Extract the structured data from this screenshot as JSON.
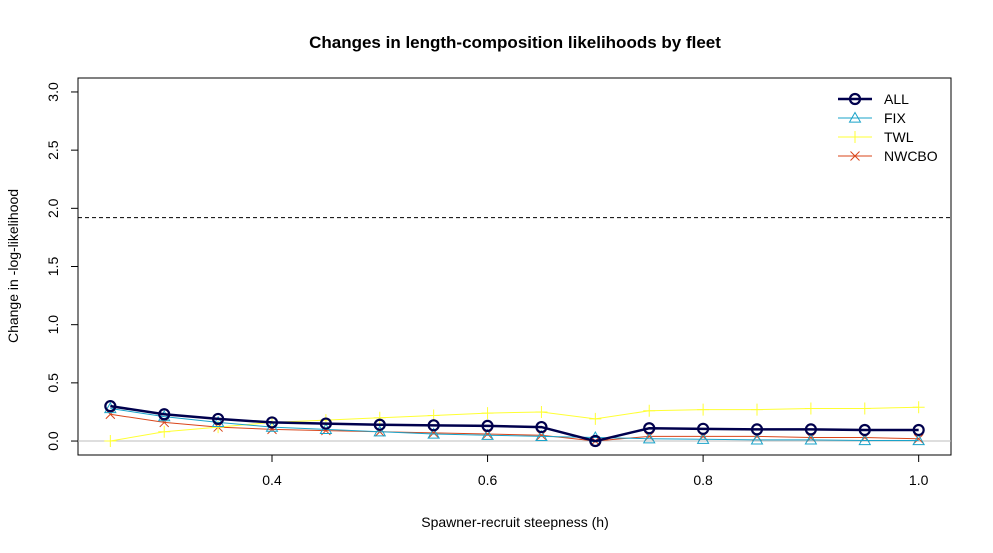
{
  "chart_data": {
    "type": "line",
    "title": "Changes in length-composition likelihoods by fleet",
    "xlabel": "Spawner-recruit steepness (h)",
    "ylabel": "Change in -log-likelihood",
    "xlim": [
      0.22,
      1.03
    ],
    "ylim": [
      -0.12,
      3.12
    ],
    "xticks": [
      0.4,
      0.6,
      0.8,
      1.0
    ],
    "xtick_labels": [
      "0.4",
      "0.6",
      "0.8",
      "1.0"
    ],
    "yticks": [
      0.0,
      0.5,
      1.0,
      1.5,
      2.0,
      2.5,
      3.0
    ],
    "ytick_labels": [
      "0.0",
      "0.5",
      "1.0",
      "1.5",
      "2.0",
      "2.5",
      "3.0"
    ],
    "reference_line": {
      "y": 1.92,
      "style": "dashed"
    },
    "zero_line": {
      "y": 0.0,
      "color": "#bdbdbd"
    },
    "legend_position": "top-right",
    "x": [
      0.25,
      0.3,
      0.35,
      0.4,
      0.45,
      0.5,
      0.55,
      0.6,
      0.65,
      0.7,
      0.75,
      0.8,
      0.85,
      0.9,
      0.95,
      1.0
    ],
    "series": [
      {
        "name": "ALL",
        "color": "#00004d",
        "marker": "circle",
        "line_width": 2.5,
        "values": [
          0.3,
          0.23,
          0.19,
          0.16,
          0.15,
          0.14,
          0.135,
          0.13,
          0.12,
          0.0,
          0.11,
          0.105,
          0.1,
          0.1,
          0.095,
          0.095
        ]
      },
      {
        "name": "FIX",
        "color": "#1aa3c9",
        "marker": "triangle",
        "line_width": 1,
        "values": [
          0.28,
          0.21,
          0.16,
          0.12,
          0.1,
          0.08,
          0.06,
          0.05,
          0.04,
          0.03,
          0.02,
          0.015,
          0.01,
          0.01,
          0.005,
          0.005
        ]
      },
      {
        "name": "TWL",
        "color": "#ffff33",
        "marker": "plus",
        "line_width": 1,
        "values": [
          0.0,
          0.08,
          0.12,
          0.16,
          0.18,
          0.2,
          0.22,
          0.24,
          0.25,
          0.19,
          0.26,
          0.27,
          0.27,
          0.28,
          0.28,
          0.29
        ]
      },
      {
        "name": "NWCBO",
        "color": "#d9451a",
        "marker": "x",
        "line_width": 1,
        "values": [
          0.23,
          0.16,
          0.12,
          0.1,
          0.09,
          0.08,
          0.07,
          0.06,
          0.05,
          0.0,
          0.04,
          0.04,
          0.04,
          0.03,
          0.03,
          0.02
        ]
      }
    ]
  }
}
